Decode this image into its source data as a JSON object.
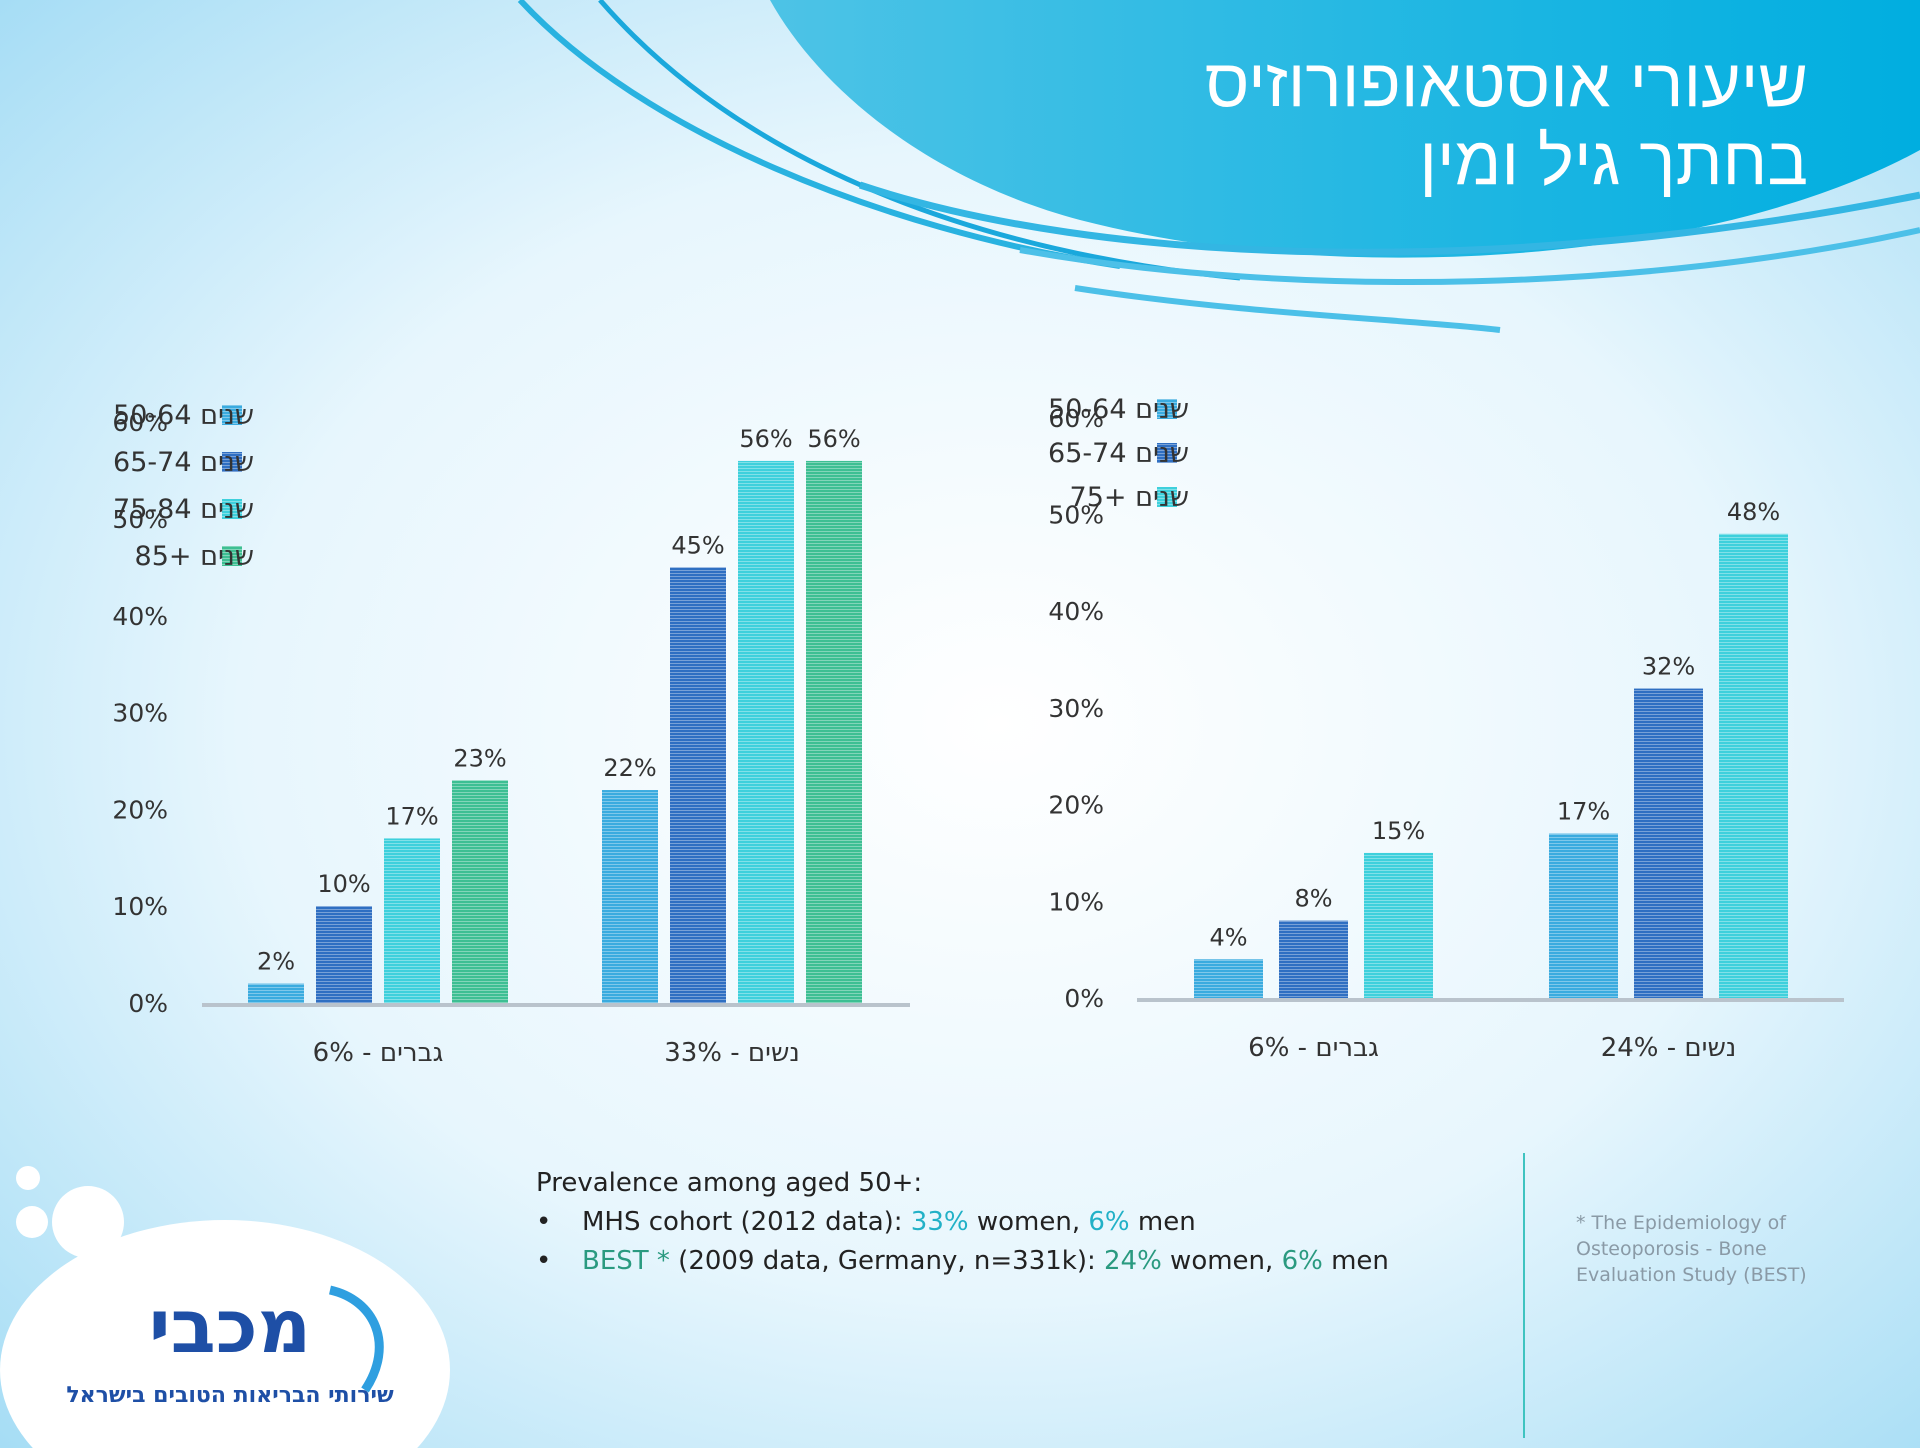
{
  "title": {
    "line1": "שיעורי אוסטאופורוזיס",
    "line2": "בחתך גיל ומין"
  },
  "colors": {
    "c1": "#3aabdf",
    "c2": "#2f6fc2",
    "c3": "#3ed0dc",
    "c4": "#3dbf93",
    "grid": "#b9c3cc",
    "text": "#333333"
  },
  "chart_data": [
    {
      "type": "bar",
      "title": "",
      "xlabel": "",
      "ylabel": "",
      "ylim": [
        0,
        60
      ],
      "yticks": [
        "0%",
        "10%",
        "20%",
        "30%",
        "40%",
        "50%",
        "60%"
      ],
      "grid": false,
      "legend_position": "top-left",
      "categories": [
        "גברים - 6%",
        "נשים - 33%"
      ],
      "series": [
        {
          "name": "50-64 שנים",
          "legend_label": "שנים 50-64",
          "values": [
            2,
            22
          ],
          "labels": [
            "2%",
            "22%"
          ],
          "color": "#3aabdf"
        },
        {
          "name": "65-74 שנים",
          "legend_label": "שנים 65-74",
          "values": [
            10,
            45
          ],
          "labels": [
            "10%",
            "45%"
          ],
          "color": "#2f6fc2"
        },
        {
          "name": "75-84 שנים",
          "legend_label": "שנים 75-84",
          "values": [
            17,
            56
          ],
          "labels": [
            "17%",
            "56%"
          ],
          "color": "#3ed0dc"
        },
        {
          "name": "+85 שנים",
          "legend_label": "שנים +85",
          "values": [
            23,
            56
          ],
          "labels": [
            "23%",
            "56%"
          ],
          "color": "#3dbf93"
        }
      ]
    },
    {
      "type": "bar",
      "title": "",
      "xlabel": "",
      "ylabel": "",
      "ylim": [
        0,
        60
      ],
      "yticks": [
        "0%",
        "10%",
        "20%",
        "30%",
        "40%",
        "50%",
        "60%"
      ],
      "grid": false,
      "legend_position": "top-left",
      "categories": [
        "גברים - 6%",
        "נשים - 24%"
      ],
      "series": [
        {
          "name": "50-64 שנים",
          "legend_label": "שנים 50-64",
          "values": [
            4,
            17
          ],
          "labels": [
            "4%",
            "17%"
          ],
          "color": "#3aabdf"
        },
        {
          "name": "65-74 שנים",
          "legend_label": "שנים 65-74",
          "values": [
            8,
            32
          ],
          "labels": [
            "8%",
            "32%"
          ],
          "color": "#2f6fc2"
        },
        {
          "name": "+75 שנים",
          "legend_label": "שנים +75",
          "values": [
            15,
            48
          ],
          "labels": [
            "15%",
            "48%"
          ],
          "color": "#3ed0dc"
        }
      ]
    }
  ],
  "notes": {
    "heading": "Prevalence among aged 50+:",
    "bullet": "•",
    "mhs": {
      "label": "MHS cohort (2012 data): ",
      "women_pct": "33%",
      "women_word": " women, ",
      "men_pct": "6%",
      "men_word": " men"
    },
    "best": {
      "label": "BEST *",
      "detail": " (2009 data, Germany, n=331k): ",
      "women_pct": "24%",
      "women_word": " women, ",
      "men_pct": "6%",
      "men_word": " men"
    }
  },
  "footnote": {
    "line1": "* The Epidemiology of",
    "line2": "Osteoporosis - Bone",
    "line3": "Evaluation Study (BEST)"
  },
  "logo": {
    "name": "מכבי",
    "tagline": "שירותי הבריאות הטובים בישראל"
  }
}
